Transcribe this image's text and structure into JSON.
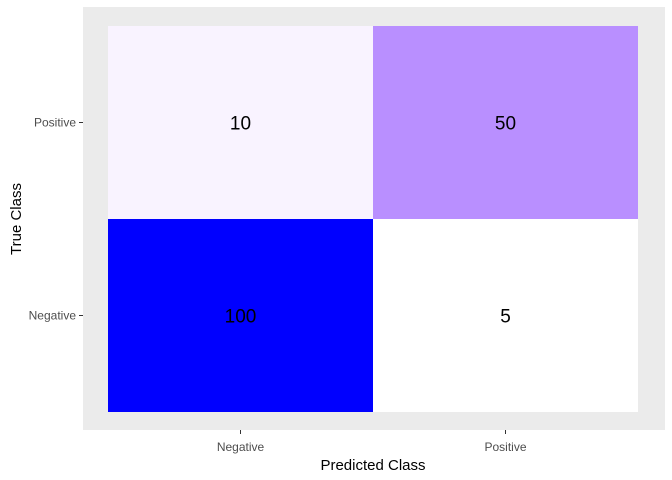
{
  "chart_data": {
    "type": "heatmap",
    "title": "",
    "xlabel": "Predicted Class",
    "ylabel": "True Class",
    "x_categories": [
      "Negative",
      "Positive"
    ],
    "y_categories": [
      "Negative",
      "Positive"
    ],
    "cells": [
      {
        "x": "Negative",
        "y": "Positive",
        "value": 10,
        "label": "10",
        "color": "#f9f3ff"
      },
      {
        "x": "Positive",
        "y": "Positive",
        "value": 50,
        "label": "50",
        "color": "#b98fff"
      },
      {
        "x": "Negative",
        "y": "Negative",
        "value": 100,
        "label": "100",
        "color": "#0000ff"
      },
      {
        "x": "Positive",
        "y": "Negative",
        "value": 5,
        "label": "5",
        "color": "#ffffff"
      }
    ],
    "panel_background": "#ebebeb",
    "grid": false,
    "legend": "none"
  }
}
